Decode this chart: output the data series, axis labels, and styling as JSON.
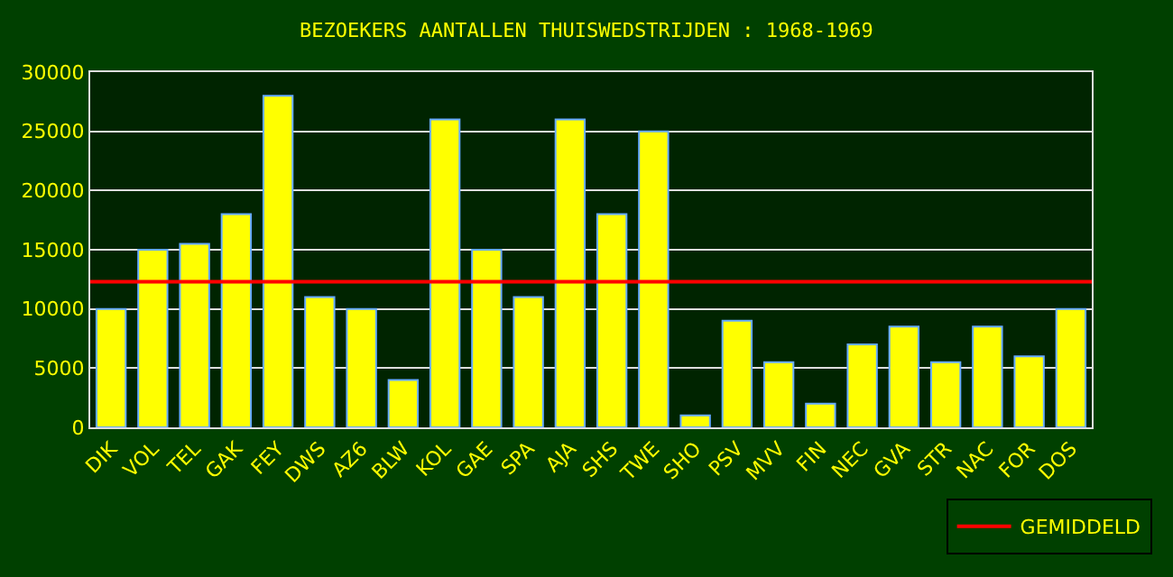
{
  "chart_data": {
    "type": "bar",
    "title": "BEZOEKERS AANTALLEN THUISWEDSTRIJDEN : 1968-1969",
    "categories": [
      "DIK",
      "VOL",
      "TEL",
      "GAK",
      "FEY",
      "DWS",
      "AZ6",
      "BLW",
      "KOL",
      "GAE",
      "SPA",
      "AJA",
      "SHS",
      "TWE",
      "SHO",
      "PSV",
      "MVV",
      "FIN",
      "NEC",
      "GVA",
      "STR",
      "NAC",
      "FOR",
      "DOS"
    ],
    "values": [
      10000,
      15000,
      15500,
      18000,
      28000,
      11000,
      10000,
      4000,
      26000,
      15000,
      11000,
      26000,
      18000,
      25000,
      1000,
      9000,
      5500,
      2000,
      7000,
      8500,
      5500,
      8500,
      6000,
      10000
    ],
    "color": "#ffff00",
    "ylim": [
      0,
      30000
    ],
    "yticks": [
      0,
      5000,
      10000,
      15000,
      20000,
      25000,
      30000
    ],
    "grid": "y",
    "legend": "bottom right",
    "ref_lines": [
      {
        "axis": "y",
        "value": 12300,
        "label": "GEMIDDELD",
        "color": "#ff0000"
      }
    ]
  }
}
